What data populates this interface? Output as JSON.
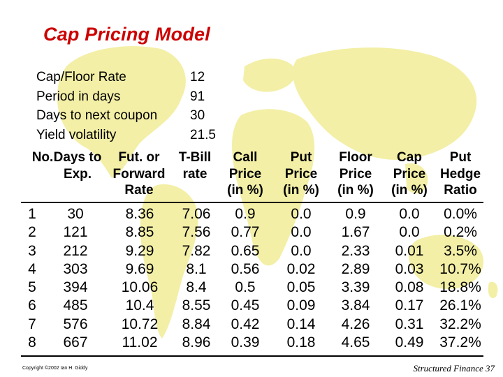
{
  "title": "Cap Pricing Model",
  "params": [
    {
      "label": "Cap/Floor Rate",
      "value": "12"
    },
    {
      "label": "Period in days",
      "value": "91"
    },
    {
      "label": "Days to next coupon",
      "value": "30"
    },
    {
      "label": "Yield volatility",
      "value": "21.5"
    }
  ],
  "headers": [
    [
      "No.",
      "",
      ""
    ],
    [
      "Days to",
      "Exp.",
      ""
    ],
    [
      "Fut. or",
      "Forward",
      "Rate"
    ],
    [
      "T-Bill",
      "rate",
      ""
    ],
    [
      "Call",
      "Price",
      "(in %)"
    ],
    [
      "Put",
      "Price",
      "(in %)"
    ],
    [
      "Floor",
      "Price",
      "(in %)"
    ],
    [
      "Cap",
      "Price",
      "(in %)"
    ],
    [
      "Put",
      "Hedge",
      "Ratio"
    ]
  ],
  "columns": {
    "no": [
      "1",
      "2",
      "3",
      "4",
      "5",
      "6",
      "7",
      "8"
    ],
    "days": [
      "30",
      "121",
      "212",
      "303",
      "394",
      "485",
      "576",
      "667"
    ],
    "fwd": [
      "8.36",
      "8.85",
      "9.29",
      "9.69",
      "10.06",
      "10.4",
      "10.72",
      "11.02"
    ],
    "tbill": [
      "7.06",
      "7.56",
      "7.82",
      "8.1",
      "8.4",
      "8.55",
      "8.84",
      "8.96"
    ],
    "call": [
      "0.9",
      "0.77",
      "0.65",
      "0.56",
      "0.5",
      "0.45",
      "0.42",
      "0.39"
    ],
    "put": [
      "0.0",
      "0.0",
      "0.0",
      "0.02",
      "0.05",
      "0.09",
      "0.14",
      "0.18"
    ],
    "floor": [
      "0.9",
      "1.67",
      "2.33",
      "2.89",
      "3.39",
      "3.84",
      "4.26",
      "4.65"
    ],
    "cap": [
      "0.0",
      "0.0",
      "0.01",
      "0.03",
      "0.08",
      "0.17",
      "0.31",
      "0.49"
    ],
    "hedge": [
      "0.0%",
      "0.2%",
      "3.5%",
      "10.7%",
      "18.8%",
      "26.1%",
      "32.2%",
      "37.2%"
    ]
  },
  "copyright": "Copyright ©2002 Ian H. Giddy",
  "footer": "Structured Finance 37",
  "colors": {
    "title": "#cc0000",
    "map": "#f3efa6"
  }
}
